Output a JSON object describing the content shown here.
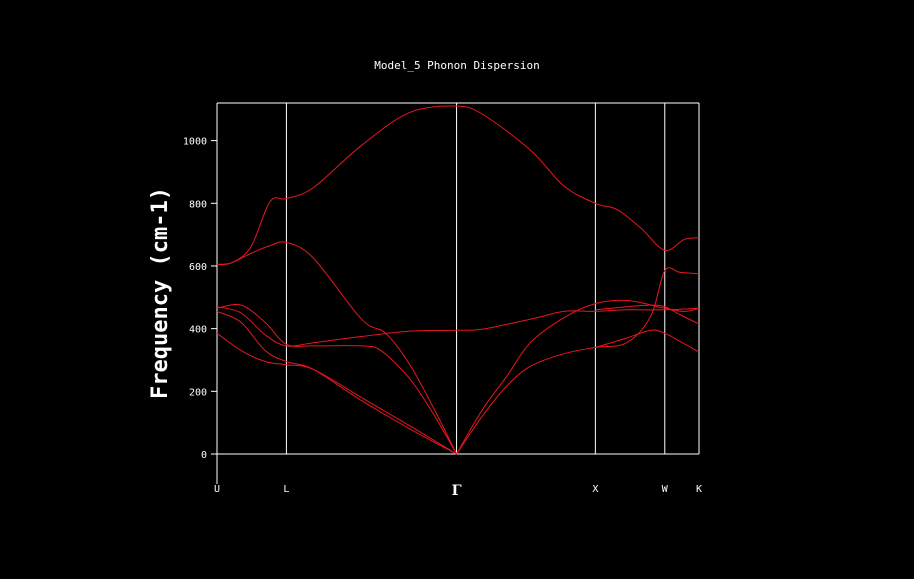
{
  "chart_data": {
    "type": "line",
    "title": "Model_5 Phonon Dispersion",
    "ylabel": "Frequency (cm-1)",
    "xlabel": "",
    "ylim": [
      0,
      1120
    ],
    "yticks": [
      0,
      200,
      400,
      600,
      800,
      1000
    ],
    "kpoints": [
      {
        "label": "U",
        "pos": 0.0
      },
      {
        "label": "L",
        "pos": 0.144
      },
      {
        "label": "Γ",
        "pos": 0.497
      },
      {
        "label": "X",
        "pos": 0.785
      },
      {
        "label": "W",
        "pos": 0.929
      },
      {
        "label": "K",
        "pos": 1.0
      }
    ],
    "grid": "vertical lines at high-symmetry points",
    "color": "#e8161e",
    "series": [
      {
        "values": [
          [
            0,
            605
          ],
          [
            0.03,
            610
          ],
          [
            0.07,
            660
          ],
          [
            0.11,
            805
          ],
          [
            0.144,
            815
          ],
          [
            0.2,
            850
          ],
          [
            0.3,
            985
          ],
          [
            0.4,
            1090
          ],
          [
            0.497,
            1110
          ],
          [
            0.55,
            1085
          ],
          [
            0.65,
            970
          ],
          [
            0.72,
            855
          ],
          [
            0.785,
            800
          ],
          [
            0.83,
            780
          ],
          [
            0.88,
            720
          ],
          [
            0.929,
            650
          ],
          [
            0.97,
            685
          ],
          [
            1.0,
            690
          ]
        ]
      },
      {
        "values": [
          [
            0,
            605
          ],
          [
            0.03,
            610
          ],
          [
            0.07,
            640
          ],
          [
            0.11,
            665
          ],
          [
            0.144,
            675
          ],
          [
            0.2,
            625
          ],
          [
            0.3,
            430
          ],
          [
            0.35,
            385
          ],
          [
            0.4,
            285
          ],
          [
            0.45,
            145
          ],
          [
            0.497,
            0
          ]
        ]
      },
      {
        "values": [
          [
            0,
            470
          ],
          [
            0.05,
            450
          ],
          [
            0.1,
            380
          ],
          [
            0.144,
            345
          ],
          [
            0.2,
            355
          ],
          [
            0.3,
            375
          ],
          [
            0.4,
            392
          ],
          [
            0.497,
            395
          ],
          [
            0.55,
            398
          ],
          [
            0.65,
            430
          ],
          [
            0.72,
            455
          ],
          [
            0.785,
            455
          ],
          [
            0.85,
            460
          ],
          [
            0.929,
            460
          ],
          [
            1.0,
            465
          ]
        ]
      },
      {
        "values": [
          [
            0,
            465
          ],
          [
            0.05,
            475
          ],
          [
            0.1,
            420
          ],
          [
            0.144,
            350
          ],
          [
            0.2,
            345
          ],
          [
            0.3,
            345
          ],
          [
            0.34,
            330
          ],
          [
            0.4,
            240
          ],
          [
            0.45,
            125
          ],
          [
            0.497,
            0
          ]
        ]
      },
      {
        "values": [
          [
            0,
            455
          ],
          [
            0.05,
            420
          ],
          [
            0.1,
            330
          ],
          [
            0.144,
            295
          ],
          [
            0.2,
            270
          ],
          [
            0.3,
            170
          ],
          [
            0.4,
            80
          ],
          [
            0.497,
            0
          ]
        ]
      },
      {
        "values": [
          [
            0,
            385
          ],
          [
            0.05,
            330
          ],
          [
            0.1,
            295
          ],
          [
            0.144,
            285
          ],
          [
            0.2,
            270
          ],
          [
            0.3,
            180
          ],
          [
            0.4,
            90
          ],
          [
            0.497,
            0
          ]
        ]
      },
      {
        "values": [
          [
            0.497,
            0
          ],
          [
            0.55,
            140
          ],
          [
            0.6,
            245
          ],
          [
            0.65,
            355
          ],
          [
            0.72,
            435
          ],
          [
            0.785,
            480
          ],
          [
            0.85,
            490
          ],
          [
            0.929,
            465
          ],
          [
            0.97,
            455
          ],
          [
            1.0,
            465
          ]
        ]
      },
      {
        "values": [
          [
            0.497,
            0
          ],
          [
            0.55,
            120
          ],
          [
            0.6,
            215
          ],
          [
            0.65,
            280
          ],
          [
            0.72,
            320
          ],
          [
            0.785,
            340
          ],
          [
            0.85,
            355
          ],
          [
            0.9,
            440
          ],
          [
            0.929,
            585
          ],
          [
            0.96,
            580
          ],
          [
            1.0,
            575
          ]
        ]
      },
      {
        "values": [
          [
            0.785,
            340
          ],
          [
            0.85,
            370
          ],
          [
            0.9,
            395
          ],
          [
            0.929,
            385
          ],
          [
            0.96,
            360
          ],
          [
            1.0,
            325
          ]
        ]
      },
      {
        "values": [
          [
            0.785,
            460
          ],
          [
            0.85,
            470
          ],
          [
            0.9,
            475
          ],
          [
            0.929,
            470
          ],
          [
            0.96,
            445
          ],
          [
            1.0,
            415
          ]
        ]
      }
    ]
  }
}
